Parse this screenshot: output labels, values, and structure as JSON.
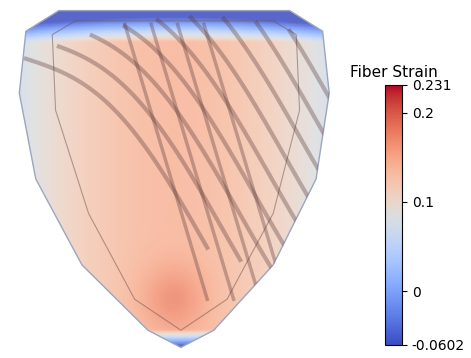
{
  "chart_data": {
    "type": "colorbar_render",
    "colorbar": {
      "title": "Fiber Strain",
      "range": [
        -0.0602,
        0.231
      ],
      "ticks": [
        -0.0602,
        0,
        0.1,
        0.2,
        0.231
      ]
    }
  }
}
